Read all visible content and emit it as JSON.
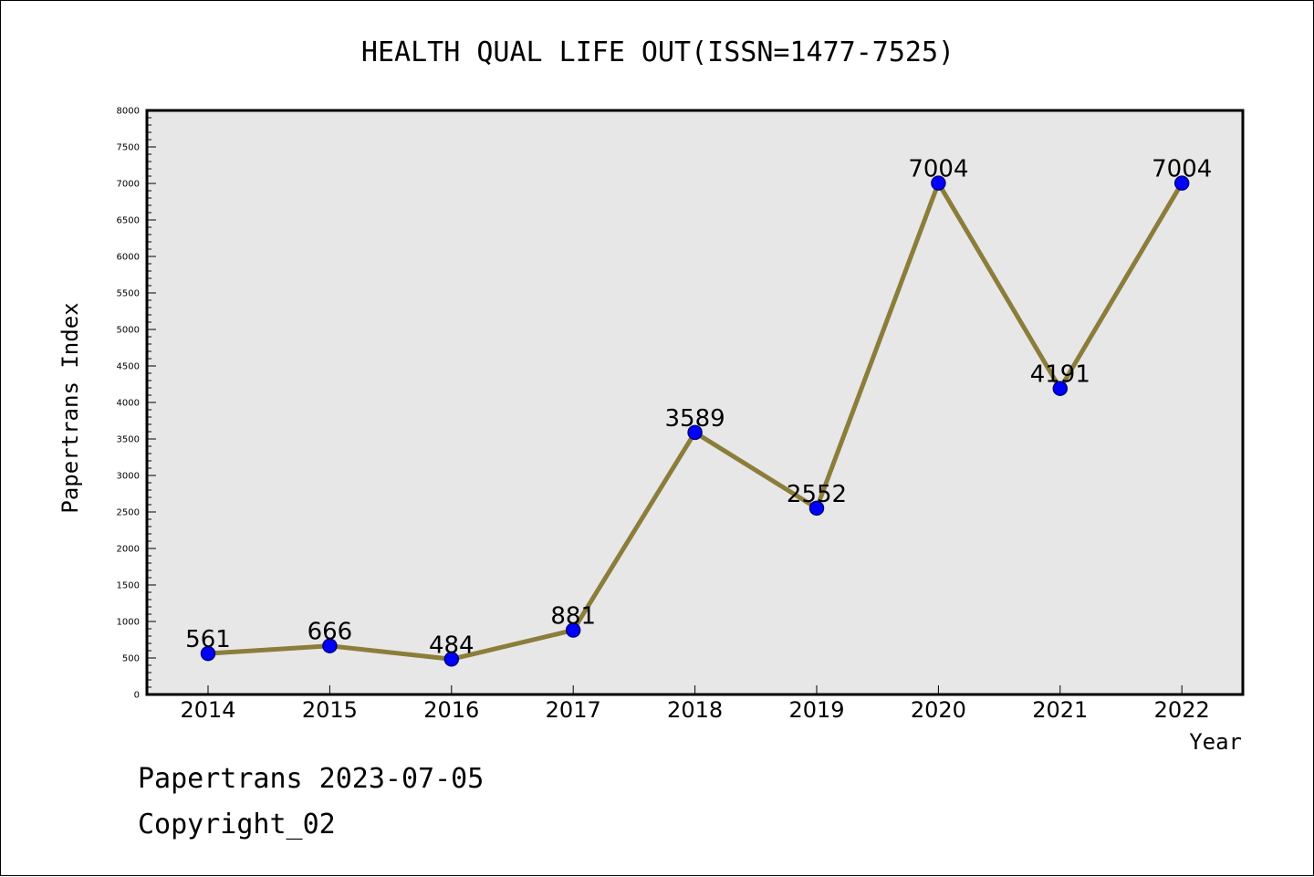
{
  "chart_data": {
    "type": "line",
    "title": "HEALTH QUAL LIFE OUT(ISSN=1477-7525)",
    "xlabel": "Year",
    "ylabel": "Papertrans Index",
    "categories": [
      "2014",
      "2015",
      "2016",
      "2017",
      "2018",
      "2019",
      "2020",
      "2021",
      "2022"
    ],
    "series": [
      {
        "values": [
          561,
          666,
          484,
          881,
          3589,
          2552,
          7004,
          4191,
          7004
        ]
      }
    ],
    "data_labels": [
      "561",
      "666",
      "484",
      "881",
      "3589",
      "2552",
      "7004",
      "4191",
      "7004"
    ],
    "ylim": [
      0,
      8000
    ],
    "y_ticks": [
      "0",
      "500",
      "1000",
      "1500",
      "2000",
      "2500",
      "3000",
      "3500",
      "4000",
      "4500",
      "5000",
      "5500",
      "6000",
      "6500",
      "7000",
      "7500",
      "8000"
    ],
    "grid": false,
    "colors": {
      "plot_background": "#e7e7e7",
      "line": "#8b7d3a",
      "marker_fill": "#0000ff",
      "marker_stroke": "#000080"
    }
  },
  "footer": {
    "line1": "Papertrans 2023-07-05",
    "line2": "Copyright_02"
  }
}
